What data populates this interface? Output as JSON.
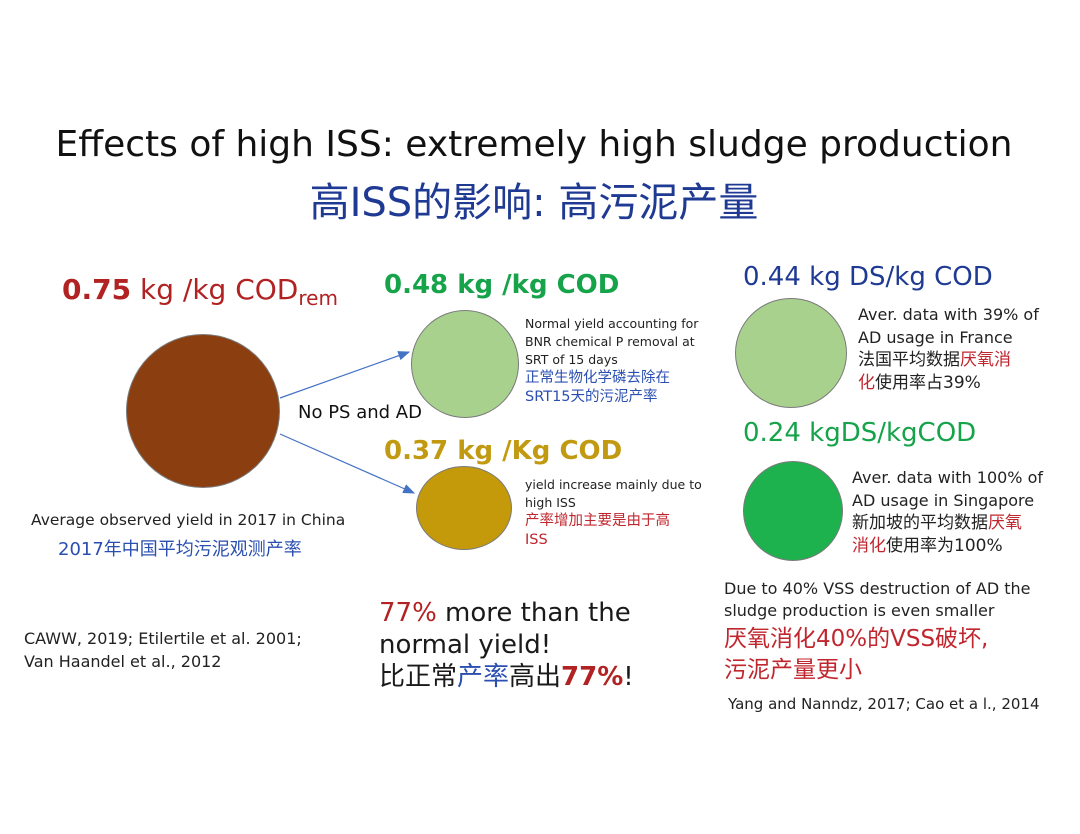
{
  "title": {
    "en": "Effects of high ISS: extremely high sludge production",
    "cn": "高ISS的影响: 高污泥产量"
  },
  "left": {
    "value": "0.75",
    "unit": " kg /kg COD",
    "unit_sub": "rem",
    "circle_color": "#8b3f10",
    "caption_en": "Average observed yield in 2017 in China",
    "caption_cn": "2017年中国平均污泥观测产率",
    "arrow_label": "No PS and AD",
    "reference": [
      "CAWW, 2019; Etilertile et al. 2001;",
      "Van Haandel et al., 2012"
    ]
  },
  "middle_top": {
    "value": "0.48 kg /kg COD",
    "circle_color": "#a9d18e",
    "note_en": [
      "Normal yield accounting for",
      "BNR chemical P removal at",
      "SRT of 15 days"
    ],
    "note_cn": [
      "正常生物化学磷去除在",
      "SRT15天的污泥产率"
    ]
  },
  "middle_bottom": {
    "value": "0.37 kg /Kg COD",
    "circle_color": "#c49a0a",
    "note_en": [
      "yield increase mainly due to",
      "high ISS"
    ],
    "note_cn": [
      "产率增加主要是由于高",
      "ISS"
    ]
  },
  "middle_summary": {
    "pct": "77%",
    "line1_rest": " more than the",
    "line2": "normal yield!",
    "cn_a": "比正常",
    "cn_b": "产率",
    "cn_c": "高出",
    "cn_pct": "77%",
    "cn_end": "!"
  },
  "right_top": {
    "value": "0.44 kg DS/kg COD",
    "circle_color": "#a9d18e",
    "note_en": [
      "Aver. data with 39% of",
      "AD usage in France"
    ],
    "note_cn_a": "法国平均数据",
    "note_cn_red1": "厌氧消",
    "note_cn_red2": "化",
    "note_cn_b": "使用率占39%"
  },
  "right_bottom": {
    "value": "0.24 kgDS/kgCOD",
    "circle_color": "#1db24d",
    "note_en": [
      "Aver. data with 100% of",
      "AD usage in Singapore"
    ],
    "note_cn_a": "新加坡的平均数据",
    "note_cn_red1": "厌氧",
    "note_cn_red2": "消化",
    "note_cn_b": "使用率为100%"
  },
  "right_summary": {
    "en": [
      "Due to 40% VSS destruction of AD the",
      "sludge production is even smaller"
    ],
    "cn": [
      "厌氧消化40%的VSS破坏,",
      "污泥产量更小"
    ],
    "reference": "Yang and Nanndz, 2017; Cao et a l., 2014"
  }
}
